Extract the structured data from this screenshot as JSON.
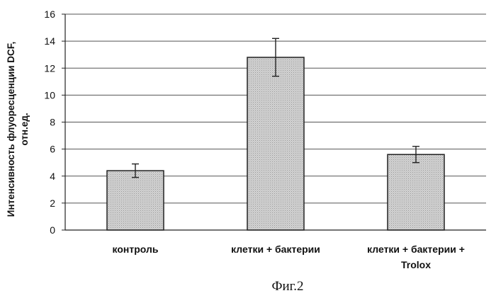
{
  "chart_data": {
    "type": "bar",
    "categories": [
      [
        "контроль"
      ],
      [
        "клетки + бактерии"
      ],
      [
        "клетки + бактерии +",
        "Trolox"
      ]
    ],
    "values": [
      4.4,
      12.8,
      5.6
    ],
    "error_bars": [
      0.5,
      1.4,
      0.6
    ],
    "ylabel": [
      "Интенсивность флуоресценции DCF,",
      "отн.ед."
    ],
    "xlabel": "",
    "ylim": [
      0,
      16
    ],
    "yticks": [
      0,
      2,
      4,
      6,
      8,
      10,
      12,
      14,
      16
    ],
    "grid": true,
    "bar_color": "#c8c8c8",
    "caption": "Фиг.2"
  }
}
